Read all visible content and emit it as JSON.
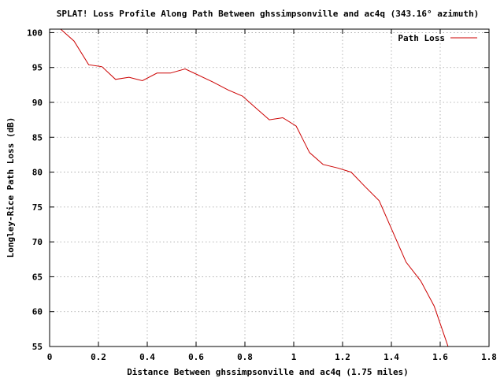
{
  "chart_data": {
    "type": "line",
    "title": "SPLAT! Loss Profile Along Path Between ghssimpsonville and ac4q (343.16° azimuth)",
    "xlabel": "Distance Between ghssimpsonville and ac4q (1.75 miles)",
    "ylabel": "Longley-Rice Path Loss (dB)",
    "xlim": [
      0,
      1.8
    ],
    "ylim": [
      55,
      100.5
    ],
    "grid": true,
    "legend_position": "top-right",
    "x_ticks": [
      0,
      0.2,
      0.4,
      0.6,
      0.8,
      1,
      1.2,
      1.4,
      1.6,
      1.8
    ],
    "x_tick_labels": [
      "0",
      "0.2",
      "0.4",
      "0.6",
      "0.8",
      "1",
      "1.2",
      "1.4",
      "1.6",
      "1.8"
    ],
    "y_ticks": [
      55,
      60,
      65,
      70,
      75,
      80,
      85,
      90,
      95,
      100
    ],
    "y_tick_labels": [
      "55",
      "60",
      "65",
      "70",
      "75",
      "80",
      "85",
      "90",
      "95",
      "100"
    ],
    "series": [
      {
        "name": "Path Loss",
        "color": "#cc0000",
        "x": [
          0.045,
          0.1,
          0.16,
          0.215,
          0.27,
          0.325,
          0.38,
          0.44,
          0.495,
          0.555,
          0.61,
          0.67,
          0.73,
          0.79,
          0.845,
          0.9,
          0.955,
          1.01,
          1.065,
          1.12,
          1.18,
          1.235,
          1.29,
          1.35,
          1.405,
          1.46,
          1.52,
          1.575,
          1.635
        ],
        "y": [
          100.5,
          98.8,
          95.4,
          95.1,
          93.3,
          93.6,
          93.1,
          94.2,
          94.2,
          94.8,
          93.9,
          92.9,
          91.8,
          90.9,
          89.2,
          87.5,
          87.8,
          86.6,
          82.8,
          81.1,
          80.6,
          80.0,
          78.0,
          75.9,
          71.5,
          67.1,
          64.4,
          60.8,
          54.7
        ]
      }
    ]
  }
}
